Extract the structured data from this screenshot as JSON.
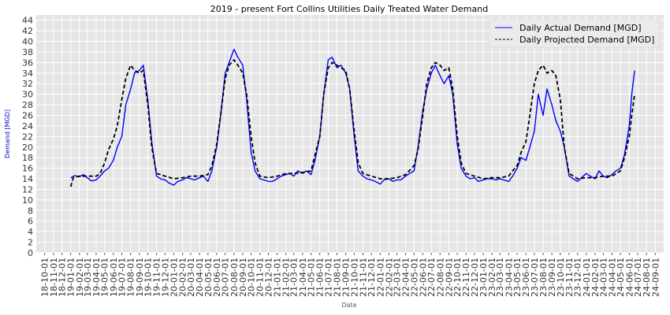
{
  "chart_data": {
    "type": "line",
    "title": "2019 - present Fort Collins Utilities Daily Treated Water Demand",
    "xlabel": "Date",
    "ylabel": "Demand [MGD]",
    "ylim": [
      0,
      45
    ],
    "y_ticks": [
      0,
      2,
      4,
      6,
      8,
      10,
      12,
      14,
      16,
      18,
      20,
      22,
      24,
      26,
      28,
      30,
      32,
      34,
      36,
      38,
      40,
      42,
      44
    ],
    "x_range": [
      "2018-09-01",
      "2024-10-01"
    ],
    "x_tick_labels": [
      "18-10-01",
      "18-11-01",
      "18-12-01",
      "19-01-01",
      "19-02-01",
      "19-03-01",
      "19-04-01",
      "19-05-01",
      "19-06-01",
      "19-07-01",
      "19-08-01",
      "19-09-01",
      "19-10-01",
      "19-11-01",
      "19-12-01",
      "20-01-01",
      "20-02-01",
      "20-03-01",
      "20-04-01",
      "20-05-01",
      "20-06-01",
      "20-07-01",
      "20-08-01",
      "20-09-01",
      "20-10-01",
      "20-11-01",
      "20-12-01",
      "21-01-01",
      "21-02-01",
      "21-03-01",
      "21-04-01",
      "21-05-01",
      "21-06-01",
      "21-07-01",
      "21-08-01",
      "21-09-01",
      "21-10-01",
      "21-11-01",
      "21-12-01",
      "22-01-01",
      "22-02-01",
      "22-03-01",
      "22-04-01",
      "22-05-01",
      "22-06-01",
      "22-07-01",
      "22-08-01",
      "22-09-01",
      "22-10-01",
      "22-11-01",
      "22-12-01",
      "23-01-01",
      "23-02-01",
      "23-03-01",
      "23-04-01",
      "23-05-01",
      "23-06-01",
      "23-07-01",
      "23-08-01",
      "23-09-01",
      "23-10-01",
      "23-11-01",
      "23-12-01",
      "24-01-01",
      "24-02-01",
      "24-03-01",
      "24-04-01",
      "24-05-01",
      "24-06-01",
      "24-07-01",
      "24-08-01",
      "24-09-01"
    ],
    "grid": true,
    "legend_position": "top-right",
    "series": [
      {
        "name": "Daily Actual Demand [MGD]",
        "color": "#0000ff",
        "style": "solid",
        "points": [
          [
            "2019-01-01",
            14.2
          ],
          [
            "2019-01-15",
            14.6
          ],
          [
            "2019-02-01",
            14.4
          ],
          [
            "2019-02-15",
            14.8
          ],
          [
            "2019-03-01",
            14.2
          ],
          [
            "2019-03-15",
            13.6
          ],
          [
            "2019-04-01",
            13.8
          ],
          [
            "2019-04-15",
            14.5
          ],
          [
            "2019-05-01",
            15.5
          ],
          [
            "2019-05-15",
            16.0
          ],
          [
            "2019-06-01",
            17.5
          ],
          [
            "2019-06-15",
            20.0
          ],
          [
            "2019-07-01",
            22.0
          ],
          [
            "2019-07-15",
            28.0
          ],
          [
            "2019-08-01",
            31.0
          ],
          [
            "2019-08-15",
            34.0
          ],
          [
            "2019-09-01",
            34.5
          ],
          [
            "2019-09-15",
            35.5
          ],
          [
            "2019-10-01",
            29.0
          ],
          [
            "2019-10-15",
            21.0
          ],
          [
            "2019-11-01",
            14.5
          ],
          [
            "2019-11-15",
            14.0
          ],
          [
            "2019-12-01",
            13.8
          ],
          [
            "2019-12-15",
            13.2
          ],
          [
            "2020-01-01",
            12.8
          ],
          [
            "2020-01-15",
            13.5
          ],
          [
            "2020-02-01",
            13.8
          ],
          [
            "2020-02-15",
            14.2
          ],
          [
            "2020-03-01",
            14.0
          ],
          [
            "2020-03-15",
            13.8
          ],
          [
            "2020-04-01",
            14.2
          ],
          [
            "2020-04-15",
            14.5
          ],
          [
            "2020-05-01",
            13.5
          ],
          [
            "2020-05-15",
            15.5
          ],
          [
            "2020-06-01",
            20.0
          ],
          [
            "2020-06-15",
            26.0
          ],
          [
            "2020-07-01",
            34.0
          ],
          [
            "2020-07-15",
            36.0
          ],
          [
            "2020-08-01",
            38.5
          ],
          [
            "2020-08-15",
            37.0
          ],
          [
            "2020-09-01",
            35.5
          ],
          [
            "2020-09-15",
            29.0
          ],
          [
            "2020-10-01",
            19.0
          ],
          [
            "2020-10-15",
            15.5
          ],
          [
            "2020-11-01",
            14.0
          ],
          [
            "2020-11-15",
            13.8
          ],
          [
            "2020-12-01",
            13.5
          ],
          [
            "2020-12-15",
            13.5
          ],
          [
            "2021-01-01",
            14.0
          ],
          [
            "2021-01-15",
            14.5
          ],
          [
            "2021-02-01",
            14.8
          ],
          [
            "2021-02-15",
            15.0
          ],
          [
            "2021-03-01",
            14.5
          ],
          [
            "2021-03-15",
            15.5
          ],
          [
            "2021-04-01",
            15.0
          ],
          [
            "2021-04-15",
            15.5
          ],
          [
            "2021-05-01",
            14.8
          ],
          [
            "2021-05-15",
            17.5
          ],
          [
            "2021-06-01",
            22.0
          ],
          [
            "2021-06-15",
            30.0
          ],
          [
            "2021-07-01",
            36.5
          ],
          [
            "2021-07-15",
            37.0
          ],
          [
            "2021-08-01",
            35.0
          ],
          [
            "2021-08-15",
            35.5
          ],
          [
            "2021-09-01",
            34.0
          ],
          [
            "2021-09-15",
            31.0
          ],
          [
            "2021-10-01",
            22.0
          ],
          [
            "2021-10-15",
            15.5
          ],
          [
            "2021-11-01",
            14.5
          ],
          [
            "2021-11-15",
            14.0
          ],
          [
            "2021-12-01",
            13.8
          ],
          [
            "2021-12-15",
            13.5
          ],
          [
            "2022-01-01",
            13.0
          ],
          [
            "2022-01-15",
            13.8
          ],
          [
            "2022-02-01",
            14.0
          ],
          [
            "2022-02-15",
            13.5
          ],
          [
            "2022-03-01",
            13.8
          ],
          [
            "2022-03-15",
            13.8
          ],
          [
            "2022-04-01",
            14.5
          ],
          [
            "2022-04-15",
            15.0
          ],
          [
            "2022-05-01",
            15.5
          ],
          [
            "2022-05-15",
            20.0
          ],
          [
            "2022-06-01",
            27.0
          ],
          [
            "2022-06-15",
            31.0
          ],
          [
            "2022-07-01",
            34.0
          ],
          [
            "2022-07-15",
            35.5
          ],
          [
            "2022-08-01",
            33.5
          ],
          [
            "2022-08-15",
            32.0
          ],
          [
            "2022-09-01",
            33.5
          ],
          [
            "2022-09-15",
            30.0
          ],
          [
            "2022-10-01",
            20.5
          ],
          [
            "2022-10-15",
            16.0
          ],
          [
            "2022-11-01",
            14.5
          ],
          [
            "2022-11-15",
            14.0
          ],
          [
            "2022-12-01",
            14.2
          ],
          [
            "2022-12-15",
            13.5
          ],
          [
            "2023-01-01",
            13.8
          ],
          [
            "2023-01-15",
            14.0
          ],
          [
            "2023-02-01",
            14.0
          ],
          [
            "2023-02-15",
            13.8
          ],
          [
            "2023-03-01",
            14.0
          ],
          [
            "2023-03-15",
            13.8
          ],
          [
            "2023-04-01",
            13.5
          ],
          [
            "2023-04-15",
            14.5
          ],
          [
            "2023-05-01",
            16.0
          ],
          [
            "2023-05-15",
            18.0
          ],
          [
            "2023-06-01",
            17.5
          ],
          [
            "2023-06-15",
            20.0
          ],
          [
            "2023-07-01",
            23.0
          ],
          [
            "2023-07-15",
            30.0
          ],
          [
            "2023-08-01",
            26.0
          ],
          [
            "2023-08-15",
            31.0
          ],
          [
            "2023-09-01",
            28.0
          ],
          [
            "2023-09-15",
            25.0
          ],
          [
            "2023-10-01",
            23.0
          ],
          [
            "2023-10-15",
            20.0
          ],
          [
            "2023-11-01",
            14.5
          ],
          [
            "2023-11-15",
            14.0
          ],
          [
            "2023-12-01",
            13.5
          ],
          [
            "2023-12-15",
            14.2
          ],
          [
            "2024-01-01",
            15.0
          ],
          [
            "2024-01-15",
            14.5
          ],
          [
            "2024-02-01",
            14.0
          ],
          [
            "2024-02-15",
            15.5
          ],
          [
            "2024-03-01",
            14.5
          ],
          [
            "2024-03-15",
            14.2
          ],
          [
            "2024-04-01",
            14.8
          ],
          [
            "2024-04-15",
            15.5
          ],
          [
            "2024-05-01",
            16.0
          ],
          [
            "2024-05-15",
            18.5
          ],
          [
            "2024-06-01",
            24.0
          ],
          [
            "2024-06-10",
            30.0
          ],
          [
            "2024-06-20",
            34.5
          ]
        ]
      },
      {
        "name": "Daily Projected Demand [MGD]",
        "color": "#000000",
        "style": "dashed",
        "points": [
          [
            "2019-01-01",
            12.5
          ],
          [
            "2019-01-10",
            14.2
          ],
          [
            "2019-02-01",
            14.5
          ],
          [
            "2019-03-01",
            14.5
          ],
          [
            "2019-04-01",
            14.5
          ],
          [
            "2019-04-15",
            15.0
          ],
          [
            "2019-05-01",
            17.0
          ],
          [
            "2019-05-15",
            19.5
          ],
          [
            "2019-06-01",
            21.5
          ],
          [
            "2019-06-15",
            24.0
          ],
          [
            "2019-07-01",
            29.0
          ],
          [
            "2019-07-15",
            33.0
          ],
          [
            "2019-08-01",
            35.5
          ],
          [
            "2019-08-15",
            34.5
          ],
          [
            "2019-09-01",
            34.0
          ],
          [
            "2019-09-15",
            34.5
          ],
          [
            "2019-10-01",
            28.0
          ],
          [
            "2019-10-15",
            20.0
          ],
          [
            "2019-11-01",
            15.0
          ],
          [
            "2019-11-15",
            14.8
          ],
          [
            "2019-12-01",
            14.5
          ],
          [
            "2020-01-01",
            14.0
          ],
          [
            "2020-02-01",
            14.2
          ],
          [
            "2020-03-01",
            14.5
          ],
          [
            "2020-04-01",
            14.5
          ],
          [
            "2020-05-01",
            14.8
          ],
          [
            "2020-05-15",
            16.5
          ],
          [
            "2020-06-01",
            20.5
          ],
          [
            "2020-06-15",
            26.0
          ],
          [
            "2020-07-01",
            33.0
          ],
          [
            "2020-07-15",
            35.5
          ],
          [
            "2020-08-01",
            36.5
          ],
          [
            "2020-08-15",
            35.5
          ],
          [
            "2020-09-01",
            34.0
          ],
          [
            "2020-09-15",
            30.0
          ],
          [
            "2020-10-01",
            22.0
          ],
          [
            "2020-10-15",
            17.0
          ],
          [
            "2020-11-01",
            14.5
          ],
          [
            "2020-12-01",
            14.2
          ],
          [
            "2021-01-01",
            14.5
          ],
          [
            "2021-02-01",
            15.0
          ],
          [
            "2021-03-01",
            15.0
          ],
          [
            "2021-04-01",
            15.2
          ],
          [
            "2021-05-01",
            15.5
          ],
          [
            "2021-05-15",
            18.5
          ],
          [
            "2021-06-01",
            22.0
          ],
          [
            "2021-06-15",
            30.0
          ],
          [
            "2021-07-01",
            35.0
          ],
          [
            "2021-07-15",
            36.0
          ],
          [
            "2021-08-01",
            35.5
          ],
          [
            "2021-08-15",
            35.0
          ],
          [
            "2021-09-01",
            34.5
          ],
          [
            "2021-09-15",
            31.0
          ],
          [
            "2021-10-01",
            23.0
          ],
          [
            "2021-10-15",
            17.0
          ],
          [
            "2021-11-01",
            15.0
          ],
          [
            "2021-12-01",
            14.5
          ],
          [
            "2022-01-01",
            14.0
          ],
          [
            "2022-02-01",
            14.0
          ],
          [
            "2022-03-01",
            14.2
          ],
          [
            "2022-04-01",
            14.8
          ],
          [
            "2022-05-01",
            16.5
          ],
          [
            "2022-05-15",
            19.5
          ],
          [
            "2022-06-01",
            26.0
          ],
          [
            "2022-06-15",
            32.0
          ],
          [
            "2022-07-01",
            35.0
          ],
          [
            "2022-07-15",
            36.0
          ],
          [
            "2022-08-01",
            35.5
          ],
          [
            "2022-08-15",
            34.5
          ],
          [
            "2022-09-01",
            35.0
          ],
          [
            "2022-09-15",
            31.0
          ],
          [
            "2022-10-01",
            22.0
          ],
          [
            "2022-10-15",
            17.0
          ],
          [
            "2022-11-01",
            15.0
          ],
          [
            "2022-12-01",
            14.5
          ],
          [
            "2023-01-01",
            14.0
          ],
          [
            "2023-02-01",
            14.2
          ],
          [
            "2023-03-01",
            14.2
          ],
          [
            "2023-04-01",
            14.5
          ],
          [
            "2023-04-15",
            15.5
          ],
          [
            "2023-05-01",
            16.5
          ],
          [
            "2023-05-15",
            19.0
          ],
          [
            "2023-06-01",
            21.0
          ],
          [
            "2023-06-15",
            26.0
          ],
          [
            "2023-07-01",
            32.0
          ],
          [
            "2023-07-15",
            34.5
          ],
          [
            "2023-08-01",
            35.5
          ],
          [
            "2023-08-15",
            34.0
          ],
          [
            "2023-09-01",
            34.5
          ],
          [
            "2023-09-15",
            33.5
          ],
          [
            "2023-10-01",
            29.0
          ],
          [
            "2023-10-15",
            20.0
          ],
          [
            "2023-11-01",
            15.0
          ],
          [
            "2023-12-01",
            14.0
          ],
          [
            "2024-01-01",
            14.2
          ],
          [
            "2024-02-01",
            14.2
          ],
          [
            "2024-03-01",
            14.5
          ],
          [
            "2024-04-01",
            14.5
          ],
          [
            "2024-05-01",
            15.5
          ],
          [
            "2024-05-15",
            18.0
          ],
          [
            "2024-06-01",
            22.0
          ],
          [
            "2024-06-10",
            26.0
          ],
          [
            "2024-06-20",
            30.0
          ]
        ]
      }
    ]
  }
}
